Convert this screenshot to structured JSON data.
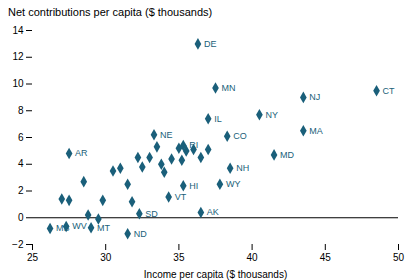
{
  "chart_data": {
    "type": "scatter",
    "ylabel": "Net contributions per capita ($ thousands)",
    "xlabel": "Income per capita ($ thousands)",
    "xlim": [
      25,
      50
    ],
    "ylim": [
      -2,
      14
    ],
    "xticks": [
      25,
      30,
      35,
      40,
      45,
      50
    ],
    "yticks": [
      -2,
      0,
      2,
      4,
      6,
      8,
      10,
      12,
      14
    ],
    "color": "#1a5f7a",
    "marker": "diamond",
    "grid": false,
    "hline": 0,
    "x": [
      27.0,
      27.5,
      28.5,
      28.8,
      29.5,
      29.8,
      30.5,
      31.0,
      31.5,
      31.8,
      32.2,
      32.5,
      33.0,
      33.5,
      33.8,
      34.0,
      34.5,
      35.0,
      35.2,
      35.5,
      36.0,
      36.5,
      37.0,
      26.2,
      27.3,
      29.0,
      31.5,
      27.5,
      33.3,
      35.3,
      35.3,
      34.3,
      32.3,
      36.3,
      37.5,
      37.0,
      38.3,
      38.5,
      37.8,
      36.5,
      40.5,
      43.5,
      43.5,
      41.5,
      48.5
    ],
    "values": [
      1.4,
      1.3,
      2.7,
      0.2,
      -0.1,
      1.3,
      3.5,
      3.7,
      2.5,
      1.2,
      4.5,
      3.8,
      4.5,
      5.3,
      4.0,
      3.4,
      4.4,
      5.2,
      4.3,
      5.0,
      5.1,
      4.5,
      5.1,
      -0.8,
      -0.65,
      -0.75,
      -1.2,
      4.8,
      6.2,
      5.4,
      2.4,
      1.55,
      0.3,
      13.0,
      9.7,
      7.4,
      6.1,
      3.7,
      2.5,
      0.4,
      7.7,
      9.0,
      6.5,
      4.7,
      9.5
    ],
    "point_labels": [
      null,
      null,
      null,
      null,
      null,
      null,
      null,
      null,
      null,
      null,
      null,
      null,
      null,
      null,
      null,
      null,
      null,
      null,
      null,
      null,
      null,
      null,
      null,
      "MS",
      "WV",
      "MT",
      "ND",
      "AR",
      "NE",
      "RI",
      "HI",
      "VT",
      "SD",
      "DE",
      "MN",
      "IL",
      "CO",
      "NH",
      "WY",
      "AK",
      "NY",
      "NJ",
      "MA",
      "MD",
      "CT"
    ]
  }
}
